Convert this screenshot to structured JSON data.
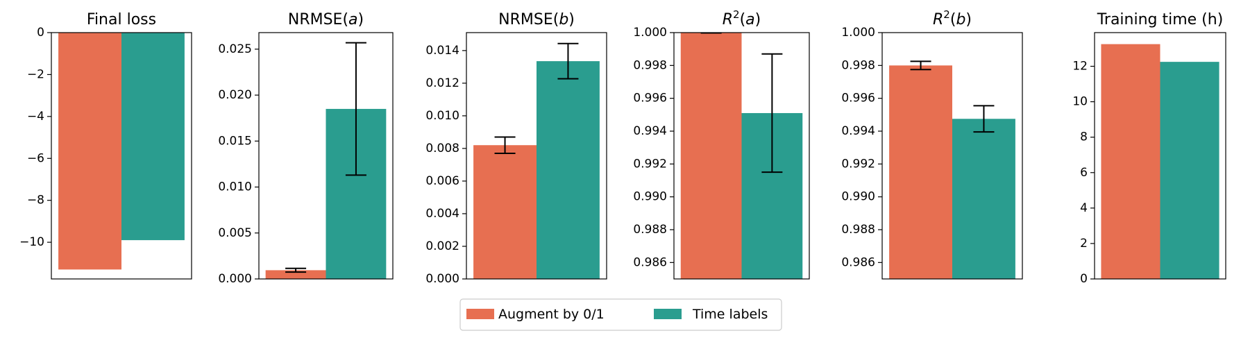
{
  "legend": {
    "placement": "bottom-center",
    "entries": [
      {
        "label": "Augment by 0/1",
        "color": "#E76F51"
      },
      {
        "label": "Time labels",
        "color": "#2A9D8F"
      }
    ]
  },
  "chart_data": [
    {
      "type": "bar",
      "title": "Final loss",
      "categories": [
        "Augment by 0/1",
        "Time labels"
      ],
      "values": [
        -11.3,
        -9.9
      ],
      "errors": [
        null,
        null
      ],
      "ylim": [
        -11.75,
        0
      ],
      "yticks": [
        0,
        -2,
        -4,
        -6,
        -8,
        -10
      ],
      "ytick_labels": [
        "0",
        "−2",
        "−4",
        "−6",
        "−8",
        "−10"
      ],
      "grid": false
    },
    {
      "type": "bar",
      "title": "NRMSE(a)",
      "title_parts": [
        "NRMSE(",
        "a",
        ")"
      ],
      "categories": [
        "Augment by 0/1",
        "Time labels"
      ],
      "values": [
        0.00095,
        0.0185
      ],
      "errors": [
        0.0002,
        0.0072
      ],
      "ylim": [
        0,
        0.0268
      ],
      "yticks": [
        0,
        0.005,
        0.01,
        0.015,
        0.02,
        0.025
      ],
      "ytick_labels": [
        "0.000",
        "0.005",
        "0.010",
        "0.015",
        "0.020",
        "0.025"
      ],
      "grid": false
    },
    {
      "type": "bar",
      "title": "NRMSE(b)",
      "title_parts": [
        "NRMSE(",
        "b",
        ")"
      ],
      "categories": [
        "Augment by 0/1",
        "Time labels"
      ],
      "values": [
        0.0082,
        0.01335
      ],
      "errors": [
        0.0005,
        0.00108
      ],
      "ylim": [
        0,
        0.0151
      ],
      "yticks": [
        0,
        0.002,
        0.004,
        0.006,
        0.008,
        0.01,
        0.012,
        0.014
      ],
      "ytick_labels": [
        "0.000",
        "0.002",
        "0.004",
        "0.006",
        "0.008",
        "0.010",
        "0.012",
        "0.014"
      ],
      "grid": false
    },
    {
      "type": "bar",
      "title": "R^2(a)",
      "title_parts": [
        "R",
        "2",
        "(",
        "a",
        ")"
      ],
      "categories": [
        "Augment by 0/1",
        "Time labels"
      ],
      "values": [
        0.99999,
        0.9951
      ],
      "errors": [
        1e-05,
        0.0036
      ],
      "ylim": [
        0.985,
        1.0
      ],
      "yticks": [
        0.986,
        0.988,
        0.99,
        0.992,
        0.994,
        0.996,
        0.998,
        1.0
      ],
      "ytick_labels": [
        "0.986",
        "0.988",
        "0.990",
        "0.992",
        "0.994",
        "0.996",
        "0.998",
        "1.000"
      ],
      "grid": false
    },
    {
      "type": "bar",
      "title": "R^2(b)",
      "title_parts": [
        "R",
        "2",
        "(",
        "b",
        ")"
      ],
      "categories": [
        "Augment by 0/1",
        "Time labels"
      ],
      "values": [
        0.998,
        0.99475
      ],
      "errors": [
        0.00025,
        0.0008
      ],
      "ylim": [
        0.985,
        1.0
      ],
      "yticks": [
        0.986,
        0.988,
        0.99,
        0.992,
        0.994,
        0.996,
        0.998,
        1.0
      ],
      "ytick_labels": [
        "0.986",
        "0.988",
        "0.990",
        "0.992",
        "0.994",
        "0.996",
        "0.998",
        "1.000"
      ],
      "grid": false
    },
    {
      "type": "bar",
      "title": "Training time (h)",
      "categories": [
        "Augment by 0/1",
        "Time labels"
      ],
      "values": [
        13.25,
        12.25
      ],
      "errors": [
        null,
        null
      ],
      "ylim": [
        0,
        13.9
      ],
      "yticks": [
        0,
        2,
        4,
        6,
        8,
        10,
        12
      ],
      "ytick_labels": [
        "0",
        "2",
        "4",
        "6",
        "8",
        "10",
        "12"
      ],
      "grid": false
    }
  ]
}
